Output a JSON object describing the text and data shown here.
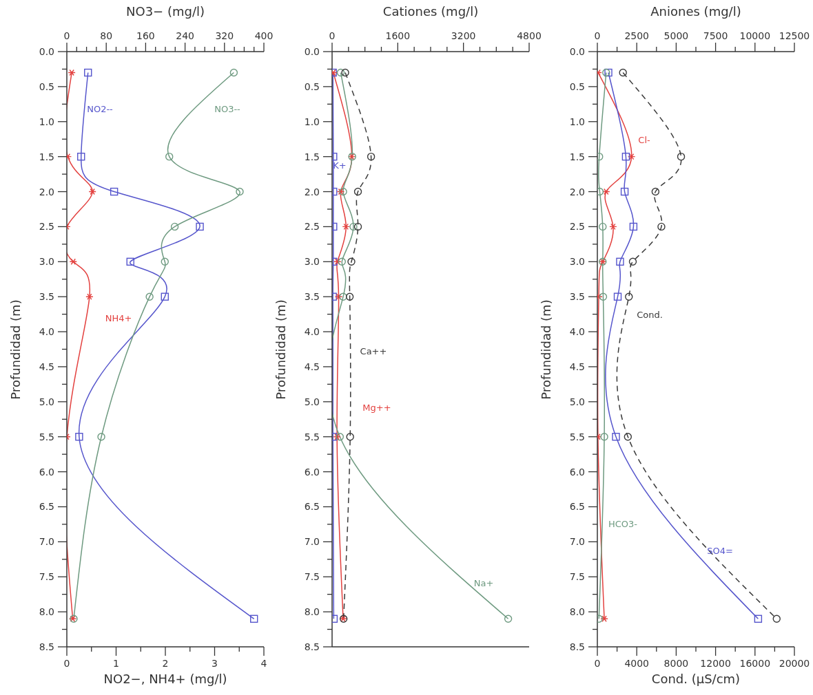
{
  "chart_data": [
    {
      "type": "line",
      "x2label": "NO3− (mg/l)",
      "xlabel": "NO2−, NH4+ (mg/l)",
      "ylabel": "Profundidad (m)",
      "xlim": [
        0,
        4
      ],
      "xticks": [
        0,
        {
          "value": 0.5,
          "label": null
        },
        1,
        {
          "value": 1.5,
          "label": null
        },
        2,
        {
          "value": 2.5,
          "label": null
        },
        3,
        {
          "value": 3.5,
          "label": null
        },
        4
      ],
      "x2lim": [
        0,
        400
      ],
      "x2ticks": [
        0,
        {
          "value": 20,
          "label": null
        },
        {
          "value": 40,
          "label": null
        },
        {
          "value": 60,
          "label": null
        },
        80,
        {
          "value": 100,
          "label": null
        },
        {
          "value": 120,
          "label": null
        },
        {
          "value": 140,
          "label": null
        },
        160,
        {
          "value": 180,
          "label": null
        },
        {
          "value": 200,
          "label": null
        },
        {
          "value": 220,
          "label": null
        },
        240,
        {
          "value": 260,
          "label": null
        },
        {
          "value": 280,
          "label": null
        },
        {
          "value": 300,
          "label": null
        },
        320,
        {
          "value": 340,
          "label": null
        },
        {
          "value": 360,
          "label": null
        },
        {
          "value": 380,
          "label": null
        },
        400
      ],
      "ylim": [
        8.5,
        0
      ],
      "yticks": [
        {
          "value": 0,
          "label": "0.0"
        },
        {
          "value": 0.25,
          "label": null
        },
        {
          "value": 0.5,
          "label": "0.5"
        },
        {
          "value": 0.75,
          "label": null
        },
        {
          "value": 1,
          "label": "1.0"
        },
        {
          "value": 1.25,
          "label": null
        },
        {
          "value": 1.5,
          "label": "1.5"
        },
        {
          "value": 1.75,
          "label": null
        },
        {
          "value": 2,
          "label": "2.0"
        },
        {
          "value": 2.25,
          "label": null
        },
        {
          "value": 2.5,
          "label": "2.5"
        },
        {
          "value": 2.75,
          "label": null
        },
        {
          "value": 3,
          "label": "3.0"
        },
        {
          "value": 3.25,
          "label": null
        },
        {
          "value": 3.5,
          "label": "3.5"
        },
        {
          "value": 3.75,
          "label": null
        },
        {
          "value": 4,
          "label": "4.0"
        },
        {
          "value": 4.25,
          "label": null
        },
        {
          "value": 4.5,
          "label": "4.5"
        },
        {
          "value": 4.75,
          "label": null
        },
        {
          "value": 5,
          "label": "5.0"
        },
        {
          "value": 5.25,
          "label": null
        },
        {
          "value": 5.5,
          "label": "5.5"
        },
        {
          "value": 5.75,
          "label": null
        },
        {
          "value": 6,
          "label": "6.0"
        },
        {
          "value": 6.25,
          "label": null
        },
        {
          "value": 6.5,
          "label": "6.5"
        },
        {
          "value": 6.75,
          "label": null
        },
        {
          "value": 7,
          "label": "7.0"
        },
        {
          "value": 7.25,
          "label": null
        },
        {
          "value": 7.5,
          "label": "7.5"
        },
        {
          "value": 7.75,
          "label": null
        },
        {
          "value": 8,
          "label": "8.0"
        },
        {
          "value": 8.25,
          "label": null
        },
        {
          "value": 8.5,
          "label": "8.5"
        }
      ],
      "series": [
        {
          "name": "NO2--",
          "color": "#5555cc",
          "marker": "square",
          "x": [
            0.43,
            0.29,
            0.96,
            2.7,
            1.29,
            1.99,
            0.25,
            3.8
          ],
          "values": [
            0.3,
            1.5,
            2.0,
            2.5,
            3.0,
            3.5,
            5.5,
            8.1
          ]
        },
        {
          "name": "NH4+",
          "color": "#e3413f",
          "marker": "cross",
          "x": [
            0.1,
            0.02,
            0.52,
            0,
            0.13,
            0.46,
            0,
            0.12
          ],
          "values": [
            0.3,
            1.5,
            2.0,
            2.5,
            3.0,
            3.5,
            5.5,
            8.1
          ]
        },
        {
          "name": "NO3--",
          "color": "#6e9a80",
          "marker": "circle",
          "axis": "x2",
          "x": [
            339,
            208,
            351,
            219,
            199,
            168,
            70,
            14
          ],
          "values": [
            0.3,
            1.5,
            2.0,
            2.5,
            3.0,
            3.5,
            5.5,
            8.1
          ]
        }
      ]
    },
    {
      "type": "line",
      "xlabel": "Cationes (mg/l)",
      "ylabel": "Profundidad (m)",
      "xlim": [
        0,
        4800
      ],
      "xticks": [
        0,
        {
          "value": 400,
          "label": null
        },
        {
          "value": 800,
          "label": null
        },
        {
          "value": 1200,
          "label": null
        },
        1600,
        {
          "value": 2000,
          "label": null
        },
        {
          "value": 2400,
          "label": null
        },
        {
          "value": 2800,
          "label": null
        },
        3200,
        {
          "value": 3600,
          "label": null
        },
        {
          "value": 4000,
          "label": null
        },
        {
          "value": 4400,
          "label": null
        },
        4800
      ],
      "ylim": [
        8.5,
        0
      ],
      "yticks": [
        {
          "value": 0,
          "label": "0.0"
        },
        {
          "value": 0.25,
          "label": null
        },
        {
          "value": 0.5,
          "label": "0.5"
        },
        {
          "value": 0.75,
          "label": null
        },
        {
          "value": 1,
          "label": "1.0"
        },
        {
          "value": 1.25,
          "label": null
        },
        {
          "value": 1.5,
          "label": "1.5"
        },
        {
          "value": 1.75,
          "label": null
        },
        {
          "value": 2,
          "label": "2.0"
        },
        {
          "value": 2.25,
          "label": null
        },
        {
          "value": 2.5,
          "label": "2.5"
        },
        {
          "value": 2.75,
          "label": null
        },
        {
          "value": 3,
          "label": "3.0"
        },
        {
          "value": 3.25,
          "label": null
        },
        {
          "value": 3.5,
          "label": "3.5"
        },
        {
          "value": 3.75,
          "label": null
        },
        {
          "value": 4,
          "label": "4.0"
        },
        {
          "value": 4.25,
          "label": null
        },
        {
          "value": 4.5,
          "label": "4.5"
        },
        {
          "value": 4.75,
          "label": null
        },
        {
          "value": 5,
          "label": "5.0"
        },
        {
          "value": 5.25,
          "label": null
        },
        {
          "value": 5.5,
          "label": "5.5"
        },
        {
          "value": 5.75,
          "label": null
        },
        {
          "value": 6,
          "label": "6.0"
        },
        {
          "value": 6.25,
          "label": null
        },
        {
          "value": 6.5,
          "label": "6.5"
        },
        {
          "value": 6.75,
          "label": null
        },
        {
          "value": 7,
          "label": "7.0"
        },
        {
          "value": 7.25,
          "label": null
        },
        {
          "value": 7.5,
          "label": "7.5"
        },
        {
          "value": 7.75,
          "label": null
        },
        {
          "value": 8,
          "label": "8.0"
        },
        {
          "value": 8.25,
          "label": null
        },
        {
          "value": 8.5,
          "label": "8.5"
        }
      ],
      "series": [
        {
          "name": "K+",
          "color": "#5555cc",
          "marker": "square",
          "x": [
            20,
            30,
            30,
            30,
            30,
            20,
            20,
            40
          ],
          "values": [
            0.3,
            1.5,
            2.0,
            2.5,
            3.0,
            3.5,
            5.5,
            8.1
          ]
        },
        {
          "name": "Mg++",
          "color": "#e3413f",
          "marker": "cross",
          "x": [
            30,
            480,
            210,
            340,
            130,
            160,
            120,
            270
          ],
          "values": [
            0.3,
            1.5,
            2.0,
            2.5,
            3.0,
            3.5,
            5.5,
            8.1
          ]
        },
        {
          "name": "Na+",
          "color": "#6e9a80",
          "marker": "circle",
          "x": [
            210,
            490,
            270,
            520,
            240,
            270,
            190,
            4290
          ],
          "values": [
            0.3,
            1.5,
            2.0,
            2.5,
            3.0,
            3.5,
            5.5,
            8.1
          ]
        },
        {
          "name": "Ca++",
          "color": "#3a3a3a",
          "marker": "circle",
          "line_style": "dashed",
          "x": [
            320,
            950,
            630,
            630,
            470,
            430,
            440,
            280
          ],
          "values": [
            0.3,
            1.5,
            2.0,
            2.5,
            3.0,
            3.5,
            5.5,
            8.1
          ]
        }
      ]
    },
    {
      "type": "line",
      "x2label": "Aniones (mg/l)",
      "xlabel": "Cond. (µS/cm)",
      "ylabel": "Profundidad (m)",
      "xlim": [
        0,
        20000
      ],
      "xticks": [
        0,
        {
          "value": 2000,
          "label": null
        },
        4000,
        {
          "value": 6000,
          "label": null
        },
        8000,
        {
          "value": 10000,
          "label": null
        },
        12000,
        {
          "value": 14000,
          "label": null
        },
        16000,
        {
          "value": 18000,
          "label": null
        },
        20000
      ],
      "x2lim": [
        0,
        12500
      ],
      "x2ticks": [
        0,
        {
          "value": 1250,
          "label": null
        },
        2500,
        {
          "value": 3750,
          "label": null
        },
        5000,
        {
          "value": 6250,
          "label": null
        },
        7500,
        {
          "value": 8750,
          "label": null
        },
        10000,
        {
          "value": 11250,
          "label": null
        },
        12500
      ],
      "ylim": [
        8.5,
        0
      ],
      "yticks": [
        {
          "value": 0,
          "label": "0.0"
        },
        {
          "value": 0.25,
          "label": null
        },
        {
          "value": 0.5,
          "label": "0.5"
        },
        {
          "value": 0.75,
          "label": null
        },
        {
          "value": 1,
          "label": "1.0"
        },
        {
          "value": 1.25,
          "label": null
        },
        {
          "value": 1.5,
          "label": "1.5"
        },
        {
          "value": 1.75,
          "label": null
        },
        {
          "value": 2,
          "label": "2.0"
        },
        {
          "value": 2.25,
          "label": null
        },
        {
          "value": 2.5,
          "label": "2.5"
        },
        {
          "value": 2.75,
          "label": null
        },
        {
          "value": 3,
          "label": "3.0"
        },
        {
          "value": 3.25,
          "label": null
        },
        {
          "value": 3.5,
          "label": "3.5"
        },
        {
          "value": 3.75,
          "label": null
        },
        {
          "value": 4,
          "label": "4.0"
        },
        {
          "value": 4.25,
          "label": null
        },
        {
          "value": 4.5,
          "label": "4.5"
        },
        {
          "value": 4.75,
          "label": null
        },
        {
          "value": 5,
          "label": "5.0"
        },
        {
          "value": 5.25,
          "label": null
        },
        {
          "value": 5.5,
          "label": "5.5"
        },
        {
          "value": 5.75,
          "label": null
        },
        {
          "value": 6,
          "label": "6.0"
        },
        {
          "value": 6.25,
          "label": null
        },
        {
          "value": 6.5,
          "label": "6.5"
        },
        {
          "value": 6.75,
          "label": null
        },
        {
          "value": 7,
          "label": "7.0"
        },
        {
          "value": 7.25,
          "label": null
        },
        {
          "value": 7.5,
          "label": "7.5"
        },
        {
          "value": 7.75,
          "label": null
        },
        {
          "value": 8,
          "label": "8.0"
        },
        {
          "value": 8.25,
          "label": null
        },
        {
          "value": 8.5,
          "label": "8.5"
        }
      ],
      "series": [
        {
          "name": "Cl-",
          "color": "#e3413f",
          "marker": "cross",
          "axis": "x2",
          "x": [
            50,
            2170,
            560,
            1000,
            340,
            90,
            40,
            440
          ],
          "values": [
            0.3,
            1.5,
            2.0,
            2.5,
            3.0,
            3.5,
            5.5,
            8.1
          ]
        },
        {
          "name": "SO4=",
          "color": "#5555cc",
          "marker": "square",
          "axis": "x2",
          "x": [
            700,
            1810,
            1730,
            2290,
            1440,
            1290,
            1180,
            10200
          ],
          "values": [
            0.3,
            1.5,
            2.0,
            2.5,
            3.0,
            3.5,
            5.5,
            8.1
          ]
        },
        {
          "name": "HCO3-",
          "color": "#6e9a80",
          "marker": "circle",
          "axis": "x2",
          "x": [
            560,
            120,
            150,
            340,
            340,
            370,
            440,
            100
          ],
          "values": [
            0.3,
            1.5,
            2.0,
            2.5,
            3.0,
            3.5,
            5.5,
            8.1
          ]
        },
        {
          "name": "Cond.",
          "color": "#3a3a3a",
          "marker": "circle",
          "line_style": "dashed",
          "x": [
            2600,
            8500,
            5900,
            6500,
            3600,
            3200,
            3100,
            18200
          ],
          "values": [
            0.3,
            1.5,
            2.0,
            2.5,
            3.0,
            3.5,
            5.5,
            8.1
          ]
        }
      ]
    }
  ]
}
